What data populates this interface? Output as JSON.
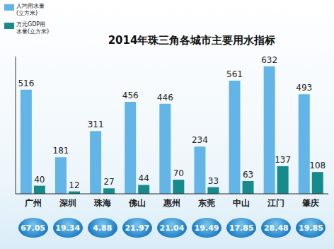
{
  "chart_data": {
    "type": "bar",
    "title": "2014年珠三角各城市主要用水指标",
    "categories": [
      "广州",
      "深圳",
      "珠海",
      "佛山",
      "惠州",
      "东莞",
      "中山",
      "江门",
      "肇庆"
    ],
    "series": [
      {
        "name": "人均用水量(立方米)",
        "color": "#62b5e6",
        "values": [
          516,
          181,
          311,
          456,
          446,
          234,
          561,
          632,
          493
        ]
      },
      {
        "name": "万元GDP用水量(立方米)",
        "color": "#178b8c",
        "values": [
          40,
          12,
          27,
          44,
          70,
          33,
          63,
          137,
          108
        ]
      }
    ],
    "bottom_values": [
      67.05,
      19.34,
      4.88,
      21.97,
      21.04,
      19.49,
      17.85,
      28.48,
      19.85
    ],
    "ylim": [
      0,
      680
    ],
    "data_labels": true,
    "legend": "upper left",
    "tick_labels": "x",
    "grid": false
  }
}
